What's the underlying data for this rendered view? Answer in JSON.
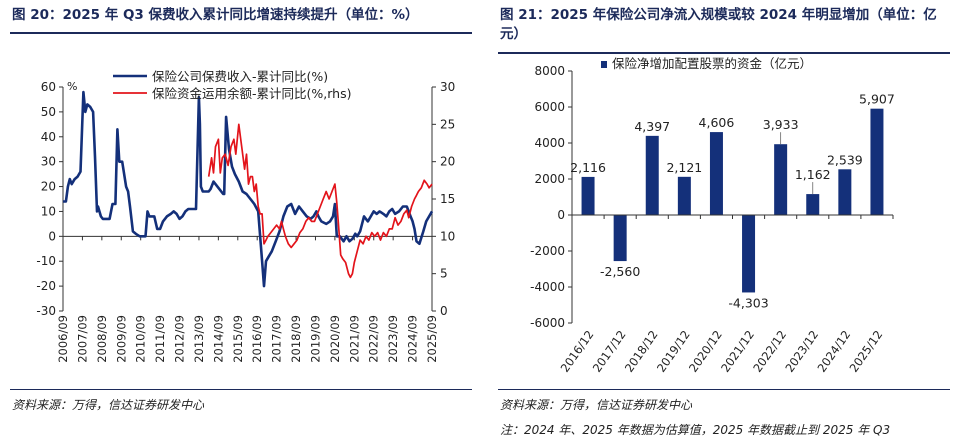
{
  "left": {
    "title": "图 20：2025 年 Q3 保费收入累计同比增速持续提升（单位：%）",
    "source": "资料来源：万得，信达证券研发中心"
  },
  "right": {
    "title": "图 21：2025 年保险公司净流入规模或较 2024 年明显增加（单位：亿元）",
    "source": "资料来源：万得，信达证券研发中心",
    "note": "注：2024 年、2025 年数据为估算值，2025 年数据截止到 2025 年 Q3"
  },
  "colors": {
    "navy": "#14307a",
    "red": "#e3141b",
    "bar": "#14307a"
  },
  "chart_data": [
    {
      "type": "line",
      "unit_label": "%",
      "x_tick_labels": [
        "2006/09",
        "2007/09",
        "2008/09",
        "2009/09",
        "2010/09",
        "2011/09",
        "2012/09",
        "2013/09",
        "2014/09",
        "2015/09",
        "2016/09",
        "2017/09",
        "2018/09",
        "2019/09",
        "2020/09",
        "2021/09",
        "2022/09",
        "2023/09",
        "2024/09",
        "2025/09"
      ],
      "x_range": [
        2006.75,
        2025.75
      ],
      "y_left": {
        "min": -30,
        "max": 60,
        "ticks": [
          -30,
          -20,
          -10,
          0,
          10,
          20,
          30,
          40,
          50,
          60
        ]
      },
      "y_right": {
        "min": 0,
        "max": 30,
        "ticks": [
          0,
          5,
          10,
          15,
          20,
          25,
          30
        ]
      },
      "series": [
        {
          "name": "保险公司保费收入-累计同比(%)",
          "axis": "left",
          "points": [
            [
              2006.75,
              14
            ],
            [
              2006.9,
              14
            ],
            [
              2007.0,
              20
            ],
            [
              2007.1,
              23
            ],
            [
              2007.2,
              21
            ],
            [
              2007.35,
              23
            ],
            [
              2007.5,
              24
            ],
            [
              2007.65,
              26
            ],
            [
              2007.8,
              58
            ],
            [
              2007.9,
              50
            ],
            [
              2008.0,
              53
            ],
            [
              2008.15,
              52
            ],
            [
              2008.3,
              50
            ],
            [
              2008.4,
              32
            ],
            [
              2008.5,
              10
            ],
            [
              2008.55,
              12
            ],
            [
              2008.7,
              8
            ],
            [
              2008.8,
              7
            ],
            [
              2009.0,
              7
            ],
            [
              2009.15,
              7
            ],
            [
              2009.3,
              13
            ],
            [
              2009.45,
              13
            ],
            [
              2009.55,
              43
            ],
            [
              2009.65,
              30
            ],
            [
              2009.8,
              30
            ],
            [
              2010.0,
              20
            ],
            [
              2010.1,
              18
            ],
            [
              2010.2,
              12
            ],
            [
              2010.35,
              2
            ],
            [
              2010.5,
              1
            ],
            [
              2010.7,
              0
            ],
            [
              2010.8,
              0
            ],
            [
              2011.0,
              0
            ],
            [
              2011.1,
              10
            ],
            [
              2011.2,
              8
            ],
            [
              2011.35,
              8
            ],
            [
              2011.45,
              8
            ],
            [
              2011.6,
              3
            ],
            [
              2011.75,
              3
            ],
            [
              2011.9,
              6
            ],
            [
              2012.1,
              8
            ],
            [
              2012.3,
              9
            ],
            [
              2012.45,
              10
            ],
            [
              2012.6,
              9
            ],
            [
              2012.75,
              7
            ],
            [
              2012.9,
              8
            ],
            [
              2013.05,
              10
            ],
            [
              2013.2,
              11
            ],
            [
              2013.4,
              11
            ],
            [
              2013.55,
              11
            ],
            [
              2013.6,
              11
            ],
            [
              2013.75,
              56
            ],
            [
              2013.8,
              45
            ],
            [
              2013.85,
              20
            ],
            [
              2013.95,
              18
            ],
            [
              2014.1,
              18
            ],
            [
              2014.25,
              18
            ],
            [
              2014.35,
              19
            ],
            [
              2014.5,
              22
            ],
            [
              2014.7,
              20
            ],
            [
              2015.0,
              17
            ],
            [
              2015.05,
              17
            ],
            [
              2015.15,
              48
            ],
            [
              2015.3,
              35
            ],
            [
              2015.45,
              28
            ],
            [
              2015.6,
              25
            ],
            [
              2015.8,
              22
            ],
            [
              2016.0,
              18
            ],
            [
              2016.2,
              17
            ],
            [
              2016.4,
              15
            ],
            [
              2016.6,
              13
            ],
            [
              2016.8,
              10
            ],
            [
              2017.0,
              -10
            ],
            [
              2017.1,
              -20
            ],
            [
              2017.2,
              -10
            ],
            [
              2017.35,
              -8
            ],
            [
              2017.5,
              -6
            ],
            [
              2017.7,
              -2
            ],
            [
              2017.9,
              2
            ],
            [
              2018.1,
              8
            ],
            [
              2018.3,
              12
            ],
            [
              2018.5,
              13
            ],
            [
              2018.7,
              9
            ],
            [
              2018.9,
              12
            ],
            [
              2019.1,
              10
            ],
            [
              2019.3,
              8
            ],
            [
              2019.5,
              7
            ],
            [
              2019.65,
              8
            ],
            [
              2019.8,
              10
            ],
            [
              2019.9,
              8
            ],
            [
              2020.05,
              6
            ],
            [
              2020.3,
              5
            ],
            [
              2020.5,
              6
            ],
            [
              2020.65,
              8
            ],
            [
              2020.75,
              13
            ],
            [
              2020.85,
              0
            ],
            [
              2021.0,
              0
            ],
            [
              2021.2,
              -2
            ],
            [
              2021.35,
              0
            ],
            [
              2021.5,
              -2
            ],
            [
              2021.65,
              -1
            ],
            [
              2021.8,
              1
            ],
            [
              2021.9,
              0
            ],
            [
              2022.05,
              2
            ],
            [
              2022.25,
              8
            ],
            [
              2022.45,
              6
            ],
            [
              2022.6,
              8
            ],
            [
              2022.75,
              10
            ],
            [
              2022.9,
              9
            ],
            [
              2023.05,
              10
            ],
            [
              2023.25,
              9
            ],
            [
              2023.4,
              8
            ],
            [
              2023.55,
              10
            ],
            [
              2023.7,
              11
            ],
            [
              2023.85,
              9
            ],
            [
              2024.05,
              10
            ],
            [
              2024.25,
              12
            ],
            [
              2024.45,
              12
            ],
            [
              2024.55,
              10
            ],
            [
              2024.65,
              8
            ],
            [
              2024.75,
              6
            ],
            [
              2024.85,
              3
            ],
            [
              2024.95,
              -2
            ],
            [
              2025.1,
              -3
            ],
            [
              2025.3,
              2
            ],
            [
              2025.45,
              6
            ],
            [
              2025.6,
              8
            ],
            [
              2025.75,
              10
            ]
          ]
        },
        {
          "name": "保险资金运用余额-累计同比(%,rhs)",
          "axis": "right",
          "points": [
            [
              2014.25,
              18
            ],
            [
              2014.4,
              20.5
            ],
            [
              2014.5,
              18.5
            ],
            [
              2014.6,
              22
            ],
            [
              2014.75,
              23
            ],
            [
              2014.85,
              18.5
            ],
            [
              2014.95,
              20.5
            ],
            [
              2015.1,
              21
            ],
            [
              2015.25,
              19.5
            ],
            [
              2015.4,
              22
            ],
            [
              2015.55,
              23
            ],
            [
              2015.65,
              21
            ],
            [
              2015.8,
              25
            ],
            [
              2015.95,
              22
            ],
            [
              2016.1,
              19
            ],
            [
              2016.2,
              21
            ],
            [
              2016.3,
              17
            ],
            [
              2016.4,
              18
            ],
            [
              2016.5,
              18
            ],
            [
              2016.6,
              16
            ],
            [
              2016.7,
              17
            ],
            [
              2016.8,
              14
            ],
            [
              2016.9,
              13
            ],
            [
              2017.0,
              13
            ],
            [
              2017.1,
              9
            ],
            [
              2017.2,
              9.5
            ],
            [
              2017.3,
              10
            ],
            [
              2017.45,
              10.5
            ],
            [
              2017.6,
              11
            ],
            [
              2017.75,
              11.5
            ],
            [
              2017.9,
              11
            ],
            [
              2018.0,
              12
            ],
            [
              2018.1,
              11
            ],
            [
              2018.2,
              10
            ],
            [
              2018.35,
              9
            ],
            [
              2018.5,
              8.5
            ],
            [
              2018.65,
              9
            ],
            [
              2018.8,
              9.5
            ],
            [
              2018.95,
              10.5
            ],
            [
              2019.1,
              11
            ],
            [
              2019.25,
              12
            ],
            [
              2019.4,
              12.5
            ],
            [
              2019.55,
              12
            ],
            [
              2019.7,
              12
            ],
            [
              2019.85,
              13
            ],
            [
              2020.0,
              14
            ],
            [
              2020.15,
              15
            ],
            [
              2020.3,
              16
            ],
            [
              2020.45,
              15
            ],
            [
              2020.6,
              16
            ],
            [
              2020.75,
              17
            ],
            [
              2020.85,
              14.5
            ],
            [
              2020.95,
              11
            ],
            [
              2021.05,
              7.5
            ],
            [
              2021.15,
              7
            ],
            [
              2021.3,
              6.5
            ],
            [
              2021.45,
              5
            ],
            [
              2021.55,
              4.5
            ],
            [
              2021.65,
              5
            ],
            [
              2021.75,
              6.5
            ],
            [
              2021.9,
              8
            ],
            [
              2022.05,
              9.5
            ],
            [
              2022.2,
              9
            ],
            [
              2022.35,
              10
            ],
            [
              2022.5,
              9.5
            ],
            [
              2022.65,
              10.5
            ],
            [
              2022.8,
              10
            ],
            [
              2022.95,
              10.5
            ],
            [
              2023.1,
              9.5
            ],
            [
              2023.25,
              10.5
            ],
            [
              2023.4,
              10
            ],
            [
              2023.55,
              11
            ],
            [
              2023.7,
              11
            ],
            [
              2023.85,
              12.5
            ],
            [
              2024.0,
              11.5
            ],
            [
              2024.15,
              12
            ],
            [
              2024.3,
              13
            ],
            [
              2024.45,
              13.5
            ],
            [
              2024.55,
              12.5
            ],
            [
              2024.7,
              14
            ],
            [
              2024.85,
              15
            ],
            [
              2024.95,
              15.5
            ],
            [
              2025.05,
              16
            ],
            [
              2025.2,
              16.5
            ],
            [
              2025.35,
              17.5
            ],
            [
              2025.5,
              17
            ],
            [
              2025.6,
              16.5
            ],
            [
              2025.75,
              17
            ]
          ]
        }
      ]
    },
    {
      "type": "bar",
      "legend": "保险净增加配置股票的资金（亿元）",
      "categories": [
        "2016/12",
        "2017/12",
        "2018/12",
        "2019/12",
        "2020/12",
        "2021/12",
        "2022/12",
        "2023/12",
        "2024/12",
        "2025/12"
      ],
      "values": [
        2116,
        -2560,
        4397,
        2121,
        4606,
        -4303,
        3933,
        1162,
        2539,
        5907
      ],
      "labels": [
        "2,116",
        "-2,560",
        "4,397",
        "2,121",
        "4,606",
        "-4,303",
        "3,933",
        "1,162",
        "2,539",
        "5,907"
      ],
      "ylim": [
        -6000,
        8000
      ],
      "y_ticks": [
        -6000,
        -4000,
        -2000,
        0,
        2000,
        4000,
        6000,
        8000
      ]
    }
  ]
}
